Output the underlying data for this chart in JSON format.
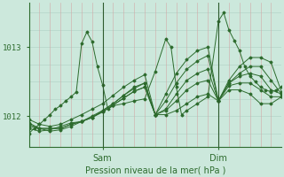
{
  "bg_color": "#cce8dc",
  "line_color": "#2d6b2d",
  "grid_v_color": "#d4a0a0",
  "grid_h_color": "#b8d8cc",
  "vline_color": "#2d5a2d",
  "ylabel_color": "#2d6b2d",
  "xlabel": "Pression niveau de la mer( hPa )",
  "xlabel_color": "#2d6b2d",
  "ylim": [
    1011.55,
    1013.65
  ],
  "xlim": [
    0,
    96
  ],
  "sam_x": 28,
  "dim_x": 72,
  "series": [
    [
      0,
      1011.75,
      2,
      1011.82,
      4,
      1011.88,
      6,
      1011.95,
      8,
      1012.02,
      10,
      1012.1,
      12,
      1012.15,
      14,
      1012.22,
      16,
      1012.28,
      18,
      1012.35,
      20,
      1013.05,
      22,
      1013.22,
      24,
      1013.08,
      26,
      1012.72,
      28,
      1012.45,
      30,
      1012.1,
      32,
      1012.15,
      36,
      1012.18,
      40,
      1012.22,
      44,
      1012.25,
      48,
      1012.65,
      52,
      1013.12,
      54,
      1013.0,
      56,
      1012.42,
      58,
      1012.02,
      60,
      1012.08,
      64,
      1012.18,
      68,
      1012.28,
      72,
      1013.38,
      74,
      1013.5,
      76,
      1013.25,
      78,
      1013.1,
      80,
      1012.95,
      82,
      1012.72,
      84,
      1012.58,
      86,
      1012.5,
      88,
      1012.42,
      90,
      1012.38,
      92,
      1012.35,
      94,
      1012.38,
      96,
      1012.42
    ],
    [
      0,
      1011.95,
      4,
      1011.88,
      8,
      1011.85,
      12,
      1011.88,
      16,
      1011.95,
      20,
      1012.02,
      24,
      1012.1,
      28,
      1012.18,
      32,
      1012.3,
      36,
      1012.42,
      40,
      1012.52,
      44,
      1012.6,
      48,
      1012.02,
      52,
      1012.32,
      56,
      1012.62,
      60,
      1012.82,
      64,
      1012.95,
      68,
      1013.0,
      72,
      1012.22,
      76,
      1012.52,
      80,
      1012.72,
      84,
      1012.85,
      88,
      1012.85,
      92,
      1012.78,
      96,
      1012.35
    ],
    [
      0,
      1011.9,
      4,
      1011.82,
      8,
      1011.78,
      12,
      1011.8,
      16,
      1011.85,
      20,
      1011.92,
      24,
      1012.0,
      28,
      1012.08,
      32,
      1012.18,
      36,
      1012.3,
      40,
      1012.4,
      44,
      1012.48,
      48,
      1012.02,
      52,
      1012.22,
      56,
      1012.48,
      60,
      1012.68,
      64,
      1012.8,
      68,
      1012.88,
      72,
      1012.22,
      76,
      1012.48,
      80,
      1012.62,
      84,
      1012.72,
      88,
      1012.72,
      92,
      1012.52,
      96,
      1012.32
    ],
    [
      0,
      1011.88,
      4,
      1011.82,
      8,
      1011.82,
      12,
      1011.82,
      16,
      1011.88,
      20,
      1011.92,
      24,
      1011.98,
      28,
      1012.08,
      32,
      1012.18,
      36,
      1012.3,
      40,
      1012.42,
      44,
      1012.48,
      48,
      1012.02,
      52,
      1012.1,
      56,
      1012.32,
      60,
      1012.52,
      64,
      1012.62,
      68,
      1012.68,
      72,
      1012.22,
      76,
      1012.48,
      80,
      1012.58,
      84,
      1012.62,
      88,
      1012.58,
      92,
      1012.38,
      96,
      1012.32
    ],
    [
      0,
      1011.85,
      4,
      1011.82,
      8,
      1011.82,
      12,
      1011.82,
      16,
      1011.88,
      20,
      1011.92,
      24,
      1011.98,
      28,
      1012.06,
      32,
      1012.16,
      36,
      1012.26,
      40,
      1012.36,
      44,
      1012.42,
      48,
      1012.02,
      52,
      1012.08,
      56,
      1012.22,
      60,
      1012.38,
      64,
      1012.48,
      68,
      1012.52,
      72,
      1012.22,
      76,
      1012.44,
      80,
      1012.48,
      84,
      1012.48,
      88,
      1012.38,
      92,
      1012.28,
      96,
      1012.28
    ],
    [
      0,
      1011.82,
      4,
      1011.78,
      8,
      1011.8,
      12,
      1011.85,
      16,
      1011.9,
      20,
      1011.92,
      24,
      1011.98,
      28,
      1012.06,
      32,
      1012.16,
      36,
      1012.26,
      40,
      1012.36,
      44,
      1012.42,
      48,
      1012.02,
      52,
      1012.02,
      56,
      1012.08,
      60,
      1012.18,
      64,
      1012.28,
      68,
      1012.32,
      72,
      1012.22,
      76,
      1012.38,
      80,
      1012.38,
      84,
      1012.32,
      88,
      1012.18,
      92,
      1012.18,
      96,
      1012.28
    ]
  ]
}
